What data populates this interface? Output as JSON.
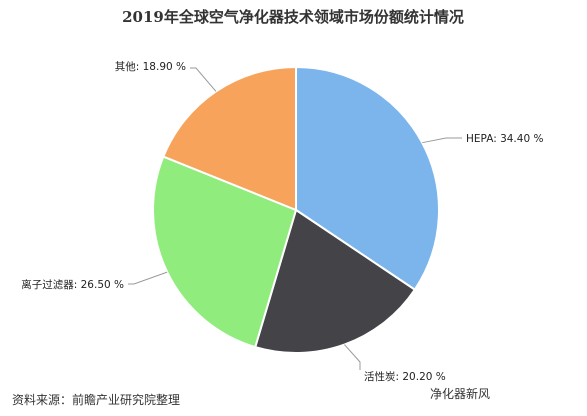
{
  "chart_data": {
    "type": "pie",
    "title": "2019年全球空气净化器技术领域市场份额统计情况",
    "slices": [
      {
        "label": "HEPA",
        "value": 34.4,
        "display": "HEPA: 34.40 %",
        "color": "#7cb5ec"
      },
      {
        "label": "活性炭",
        "value": 20.2,
        "display": "活性炭: 20.20 %",
        "color": "#434348"
      },
      {
        "label": "离子过滤器",
        "value": 26.5,
        "display": "离子过滤器: 26.50 %",
        "color": "#90ed7d"
      },
      {
        "label": "其他",
        "value": 18.9,
        "display": "其他: 18.90 %",
        "color": "#f7a35c"
      }
    ],
    "start_angle": "12 o'clock",
    "direction": "clockwise",
    "legend": "none (labels on leader lines)"
  },
  "source": "资料来源：前瞻产业研究院整理",
  "footer_caption": "净化器新风"
}
